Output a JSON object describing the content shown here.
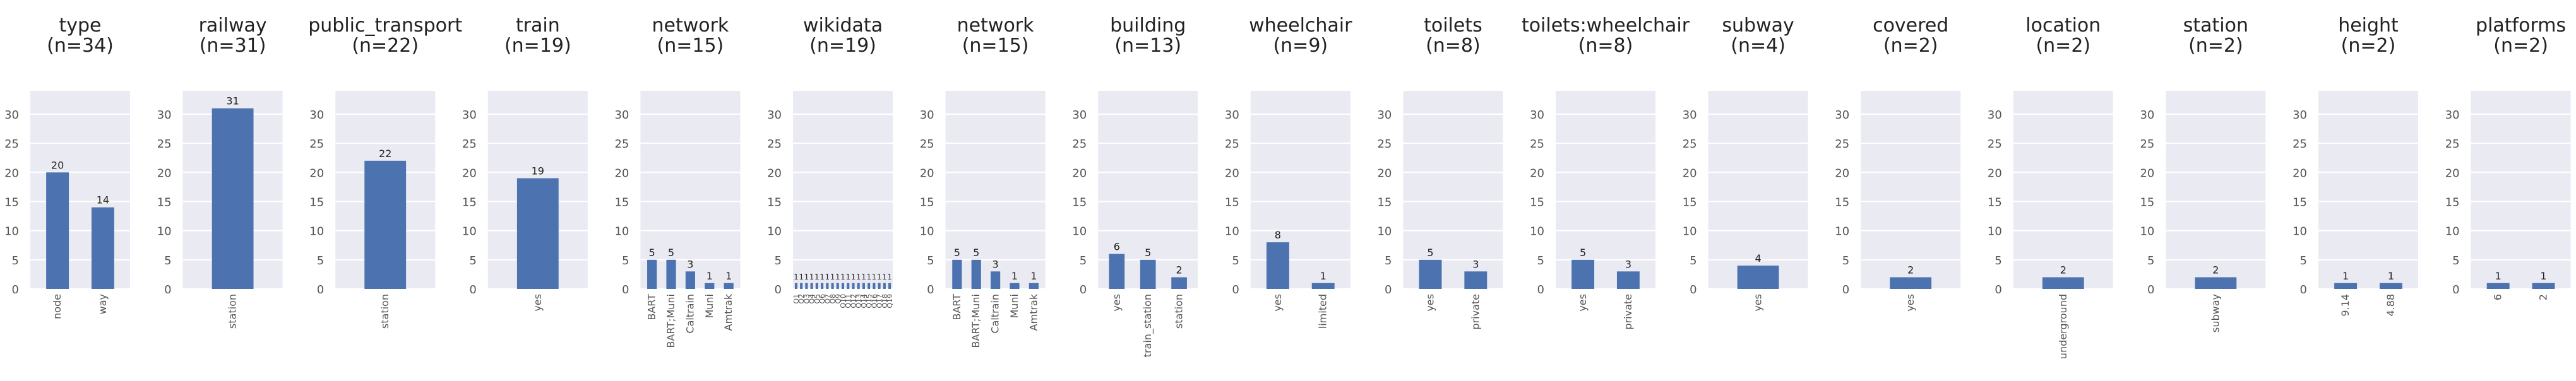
{
  "chart_data": [
    {
      "type": "bar",
      "title": "type\n(n=34)",
      "categories": [
        "node",
        "way"
      ],
      "values": [
        20,
        14
      ],
      "ylim": [
        0,
        34
      ],
      "yticks": [
        0,
        5,
        10,
        15,
        20,
        25,
        30
      ]
    },
    {
      "type": "bar",
      "title": "railway\n(n=31)",
      "categories": [
        "station"
      ],
      "values": [
        31
      ],
      "ylim": [
        0,
        34
      ],
      "yticks": [
        0,
        5,
        10,
        15,
        20,
        25,
        30
      ]
    },
    {
      "type": "bar",
      "title": "public_transport\n(n=22)",
      "categories": [
        "station"
      ],
      "values": [
        22
      ],
      "ylim": [
        0,
        34
      ],
      "yticks": [
        0,
        5,
        10,
        15,
        20,
        25,
        30
      ]
    },
    {
      "type": "bar",
      "title": "train\n(n=19)",
      "categories": [
        "yes"
      ],
      "values": [
        19
      ],
      "ylim": [
        0,
        34
      ],
      "yticks": [
        0,
        5,
        10,
        15,
        20,
        25,
        30
      ]
    },
    {
      "type": "bar",
      "title": "network\n(n=15)",
      "categories": [
        "BART",
        "BART;Muni",
        "Caltrain",
        "Muni",
        "Amtrak"
      ],
      "values": [
        5,
        5,
        3,
        1,
        1
      ],
      "ylim": [
        0,
        34
      ],
      "yticks": [
        0,
        5,
        10,
        15,
        20,
        25,
        30
      ]
    },
    {
      "type": "bar",
      "title": "wikidata\n(n=19)",
      "categories": [
        "Q1",
        "Q2",
        "Q3",
        "Q4",
        "Q5",
        "Q6",
        "Q7",
        "Q8",
        "Q9",
        "Q10",
        "Q11",
        "Q12",
        "Q13",
        "Q14",
        "Q15",
        "Q16",
        "Q17",
        "Q18",
        "Q19"
      ],
      "values": [
        1,
        1,
        1,
        1,
        1,
        1,
        1,
        1,
        1,
        1,
        1,
        1,
        1,
        1,
        1,
        1,
        1,
        1,
        1
      ],
      "ylim": [
        0,
        34
      ],
      "yticks": [
        0,
        5,
        10,
        15,
        20,
        25,
        30
      ]
    },
    {
      "type": "bar",
      "title": "network\n(n=15)",
      "categories": [
        "BART",
        "BART;Muni",
        "Caltrain",
        "Muni",
        "Amtrak"
      ],
      "values": [
        5,
        5,
        3,
        1,
        1
      ],
      "ylim": [
        0,
        34
      ],
      "yticks": [
        0,
        5,
        10,
        15,
        20,
        25,
        30
      ]
    },
    {
      "type": "bar",
      "title": "building\n(n=13)",
      "categories": [
        "yes",
        "train_station",
        "station"
      ],
      "values": [
        6,
        5,
        2
      ],
      "ylim": [
        0,
        34
      ],
      "yticks": [
        0,
        5,
        10,
        15,
        20,
        25,
        30
      ]
    },
    {
      "type": "bar",
      "title": "wheelchair\n(n=9)",
      "categories": [
        "yes",
        "limited"
      ],
      "values": [
        8,
        1
      ],
      "ylim": [
        0,
        34
      ],
      "yticks": [
        0,
        5,
        10,
        15,
        20,
        25,
        30
      ]
    },
    {
      "type": "bar",
      "title": "toilets\n(n=8)",
      "categories": [
        "yes",
        "private"
      ],
      "values": [
        5,
        3
      ],
      "ylim": [
        0,
        34
      ],
      "yticks": [
        0,
        5,
        10,
        15,
        20,
        25,
        30
      ]
    },
    {
      "type": "bar",
      "title": "toilets:wheelchair\n(n=8)",
      "categories": [
        "yes",
        "private"
      ],
      "values": [
        5,
        3
      ],
      "ylim": [
        0,
        34
      ],
      "yticks": [
        0,
        5,
        10,
        15,
        20,
        25,
        30
      ]
    },
    {
      "type": "bar",
      "title": "subway\n(n=4)",
      "categories": [
        "yes"
      ],
      "values": [
        4
      ],
      "ylim": [
        0,
        34
      ],
      "yticks": [
        0,
        5,
        10,
        15,
        20,
        25,
        30
      ]
    },
    {
      "type": "bar",
      "title": "covered\n(n=2)",
      "categories": [
        "yes"
      ],
      "values": [
        2
      ],
      "ylim": [
        0,
        34
      ],
      "yticks": [
        0,
        5,
        10,
        15,
        20,
        25,
        30
      ]
    },
    {
      "type": "bar",
      "title": "location\n(n=2)",
      "categories": [
        "underground"
      ],
      "values": [
        2
      ],
      "ylim": [
        0,
        34
      ],
      "yticks": [
        0,
        5,
        10,
        15,
        20,
        25,
        30
      ]
    },
    {
      "type": "bar",
      "title": "station\n(n=2)",
      "categories": [
        "subway"
      ],
      "values": [
        2
      ],
      "ylim": [
        0,
        34
      ],
      "yticks": [
        0,
        5,
        10,
        15,
        20,
        25,
        30
      ]
    },
    {
      "type": "bar",
      "title": "height\n(n=2)",
      "categories": [
        "9.14",
        "4.88"
      ],
      "values": [
        1,
        1
      ],
      "ylim": [
        0,
        34
      ],
      "yticks": [
        0,
        5,
        10,
        15,
        20,
        25,
        30
      ]
    },
    {
      "type": "bar",
      "title": "platforms\n(n=2)",
      "categories": [
        "6",
        "2"
      ],
      "values": [
        1,
        1
      ],
      "ylim": [
        0,
        34
      ],
      "yticks": [
        0,
        5,
        10,
        15,
        20,
        25,
        30
      ]
    }
  ],
  "style": {
    "bar_color": "#4c72b0",
    "plot_bg": "#eaeaf2",
    "grid_color": "#ffffff",
    "text_color": "#222222",
    "tick_color": "#555555"
  }
}
